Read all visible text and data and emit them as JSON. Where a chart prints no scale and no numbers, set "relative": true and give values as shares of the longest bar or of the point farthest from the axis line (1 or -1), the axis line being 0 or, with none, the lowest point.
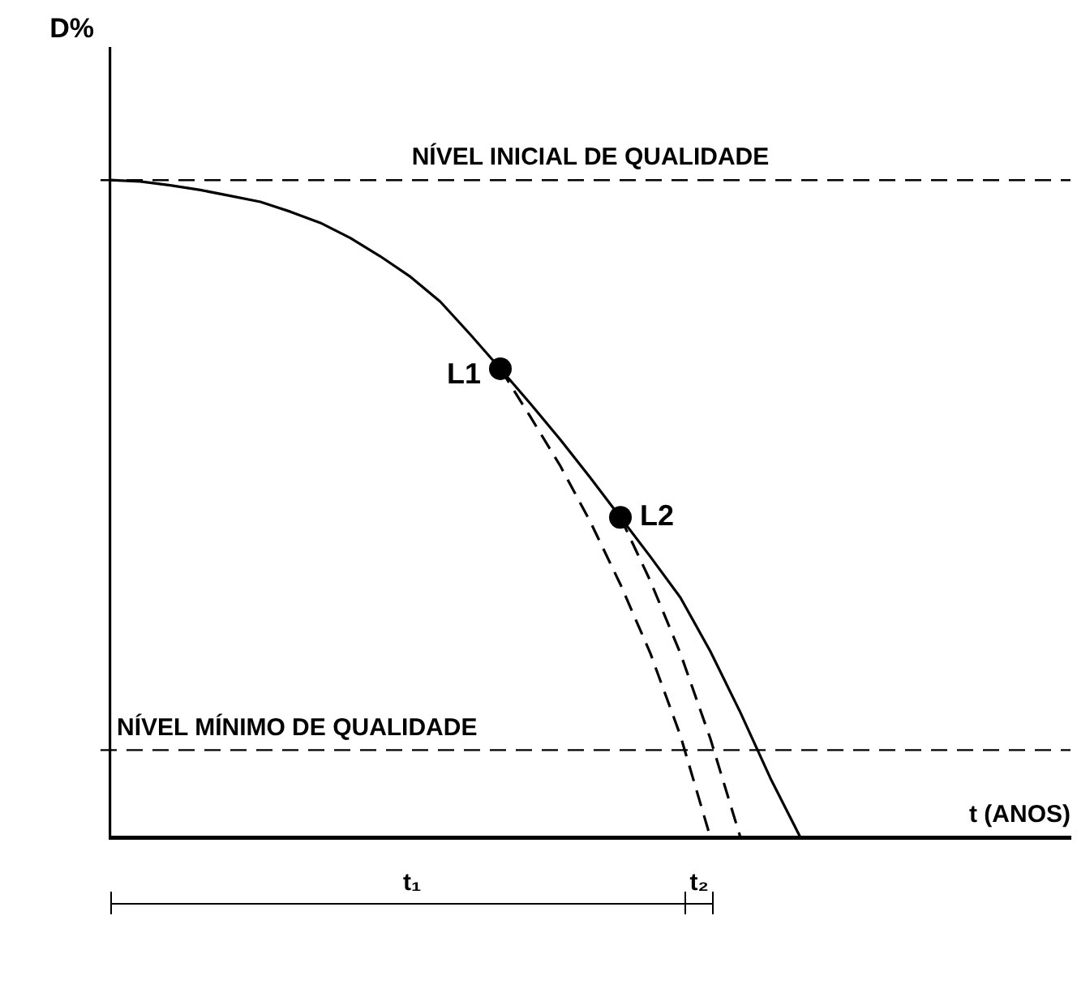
{
  "chart_data": {
    "type": "line",
    "relative": true,
    "ylabel": "D%",
    "xlabel": "t (ANOS)",
    "categories": [
      null,
      null,
      null,
      null,
      null,
      null,
      null,
      null,
      null,
      null,
      null,
      null,
      null,
      null,
      null,
      null,
      null,
      null,
      null,
      null,
      null,
      null,
      null,
      null,
      null,
      null,
      null,
      null,
      null,
      null,
      null,
      null,
      null
    ],
    "series": [
      {
        "color": "#000000",
        "line_style": "solid",
        "values": [
          1,
          0.998,
          0.992,
          0.985,
          0.976,
          0.967,
          0.952,
          0.935,
          0.912,
          0.884,
          0.853,
          0.815,
          0.765,
          0.713,
          0.66,
          0.605,
          0.547,
          0.487,
          0.427,
          0.365,
          0.283,
          0.19,
          0.09,
          0,
          null,
          null,
          null,
          null,
          null,
          null,
          null,
          null,
          null
        ]
      },
      {
        "name": "L1",
        "color": "#000000",
        "line_style": "dashed",
        "values": [
          null,
          null,
          null,
          null,
          null,
          null,
          null,
          null,
          null,
          null,
          null,
          null,
          null,
          0.713,
          0.64,
          0.565,
          0.48,
          0.385,
          0.28,
          0.155,
          0,
          null,
          null,
          null,
          null,
          null,
          null,
          null,
          null,
          null,
          null,
          null,
          null
        ]
      },
      {
        "name": "L2",
        "color": "#000000",
        "line_style": "dashed",
        "values": [
          null,
          null,
          null,
          null,
          null,
          null,
          null,
          null,
          null,
          null,
          null,
          null,
          null,
          null,
          null,
          null,
          null,
          0.487,
          0.39,
          0.28,
          0.15,
          0,
          null,
          null,
          null,
          null,
          null,
          null,
          null,
          null,
          null,
          null,
          null
        ]
      }
    ],
    "ref_lines": [
      {
        "axis": "y",
        "value": 1,
        "label": "NÍVEL INICIAL DE QUALIDADE",
        "line_style": "dashed"
      },
      {
        "axis": "y",
        "value": 0.133,
        "label": "NÍVEL MÍNIMO DE QUALIDADE",
        "line_style": "dashed"
      }
    ],
    "annotations": [
      "t₁",
      "t₂"
    ]
  }
}
